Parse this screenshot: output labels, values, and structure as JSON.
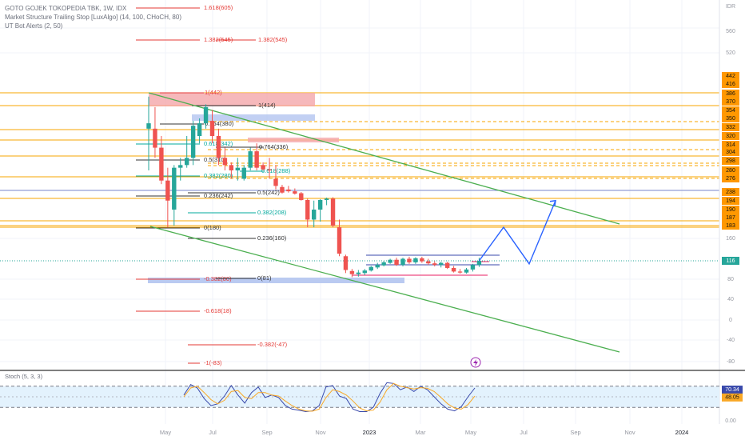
{
  "colors": {
    "up": "#26a69a",
    "down": "#ef5350",
    "fib_red": "#e53935",
    "fib_teal": "#00a99d",
    "fib_gray": "#333333",
    "sr_line": "#f7a600",
    "sr_badge": "#ff9800",
    "channel": "#4caf50",
    "projection": "#2962ff",
    "stoch_k": "#3949ab",
    "stoch_d": "#f9a825",
    "stoch_band": "#e3f2fd",
    "grid": "#f0f3fa",
    "pane_border": "#555555"
  },
  "header": {
    "symbol_line": "GOTO GOJEK TOKOPEDIA TBK, 1W, IDX",
    "indicator_1": "Market Structure Trailing Stop [LuxAlgo] (14, 100, CHoCH, 80)",
    "indicator_2": "UT Bot Alerts (2, 50)",
    "currency": "IDR",
    "stoch_label": "Stoch (5, 3, 3)",
    "event_icon": "lightning-icon"
  },
  "chart_data": [
    {
      "type": "candlestick",
      "title": "GOTO GOJEK TOKOPEDIA TBK, 1W, IDX",
      "x_ticks": [
        "May",
        "Jul",
        "Sep",
        "Nov",
        "2023",
        "Mar",
        "May",
        "Jul",
        "Sep",
        "Nov",
        "2024"
      ],
      "y_ticks": [
        560,
        520,
        160,
        80,
        40,
        0,
        -40,
        -80
      ],
      "y_range": [
        -90,
        615
      ],
      "price_badges": [
        442,
        416,
        386,
        370,
        354,
        350,
        332,
        320,
        314,
        304,
        298,
        280,
        276,
        238,
        194,
        190,
        187,
        183
      ],
      "last_price": 116,
      "candles": [
        {
          "o": 330,
          "h": 380,
          "l": 280,
          "c": 340
        },
        {
          "o": 330,
          "h": 360,
          "l": 300,
          "c": 310
        },
        {
          "o": 310,
          "h": 320,
          "l": 260,
          "c": 270
        },
        {
          "o": 270,
          "h": 285,
          "l": 180,
          "c": 195
        },
        {
          "o": 190,
          "h": 290,
          "l": 183,
          "c": 285
        },
        {
          "o": 285,
          "h": 300,
          "l": 270,
          "c": 290
        },
        {
          "o": 290,
          "h": 320,
          "l": 285,
          "c": 300
        },
        {
          "o": 300,
          "h": 345,
          "l": 290,
          "c": 335
        },
        {
          "o": 320,
          "h": 350,
          "l": 315,
          "c": 340
        },
        {
          "o": 340,
          "h": 365,
          "l": 330,
          "c": 360
        },
        {
          "o": 345,
          "h": 355,
          "l": 315,
          "c": 320
        },
        {
          "o": 320,
          "h": 330,
          "l": 290,
          "c": 300
        },
        {
          "o": 300,
          "h": 310,
          "l": 280,
          "c": 290
        },
        {
          "o": 290,
          "h": 295,
          "l": 275,
          "c": 280
        },
        {
          "o": 280,
          "h": 300,
          "l": 270,
          "c": 285
        },
        {
          "o": 275,
          "h": 290,
          "l": 270,
          "c": 285
        },
        {
          "o": 285,
          "h": 310,
          "l": 280,
          "c": 305
        },
        {
          "o": 305,
          "h": 315,
          "l": 280,
          "c": 285
        },
        {
          "o": 290,
          "h": 295,
          "l": 280,
          "c": 282
        },
        {
          "o": 282,
          "h": 300,
          "l": 275,
          "c": 280
        },
        {
          "o": 275,
          "h": 290,
          "l": 245,
          "c": 255
        },
        {
          "o": 252,
          "h": 258,
          "l": 230,
          "c": 235
        },
        {
          "o": 245,
          "h": 255,
          "l": 235,
          "c": 240
        },
        {
          "o": 240,
          "h": 248,
          "l": 225,
          "c": 230
        },
        {
          "o": 232,
          "h": 238,
          "l": 195,
          "c": 198
        },
        {
          "o": 198,
          "h": 205,
          "l": 180,
          "c": 186
        },
        {
          "o": 186,
          "h": 195,
          "l": 180,
          "c": 190
        },
        {
          "o": 190,
          "h": 202,
          "l": 185,
          "c": 198
        },
        {
          "o": 198,
          "h": 210,
          "l": 192,
          "c": 205
        },
        {
          "o": 205,
          "h": 212,
          "l": 180,
          "c": 183
        },
        {
          "o": 180,
          "h": 186,
          "l": 125,
          "c": 130
        },
        {
          "o": 125,
          "h": 128,
          "l": 92,
          "c": 98
        },
        {
          "o": 96,
          "h": 100,
          "l": 84,
          "c": 90
        },
        {
          "o": 90,
          "h": 98,
          "l": 85,
          "c": 93
        },
        {
          "o": 92,
          "h": 100,
          "l": 88,
          "c": 97
        },
        {
          "o": 97,
          "h": 106,
          "l": 95,
          "c": 104
        },
        {
          "o": 103,
          "h": 112,
          "l": 100,
          "c": 108
        },
        {
          "o": 107,
          "h": 116,
          "l": 105,
          "c": 113
        },
        {
          "o": 112,
          "h": 120,
          "l": 110,
          "c": 118
        },
        {
          "o": 118,
          "h": 122,
          "l": 106,
          "c": 108
        },
        {
          "o": 108,
          "h": 122,
          "l": 105,
          "c": 120
        },
        {
          "o": 120,
          "h": 124,
          "l": 110,
          "c": 113
        },
        {
          "o": 113,
          "h": 123,
          "l": 110,
          "c": 121
        },
        {
          "o": 121,
          "h": 124,
          "l": 112,
          "c": 115
        },
        {
          "o": 115,
          "h": 120,
          "l": 108,
          "c": 111
        },
        {
          "o": 111,
          "h": 115,
          "l": 105,
          "c": 108
        },
        {
          "o": 108,
          "h": 114,
          "l": 103,
          "c": 112
        },
        {
          "o": 112,
          "h": 114,
          "l": 100,
          "c": 102
        },
        {
          "o": 102,
          "h": 106,
          "l": 93,
          "c": 95
        },
        {
          "o": 95,
          "h": 100,
          "l": 91,
          "c": 93
        },
        {
          "o": 93,
          "h": 102,
          "l": 91,
          "c": 99
        },
        {
          "o": 99,
          "h": 110,
          "l": 95,
          "c": 108
        },
        {
          "o": 108,
          "h": 122,
          "l": 104,
          "c": 116
        }
      ],
      "fib_labels": [
        {
          "text": "1.618(605)",
          "color": "red"
        },
        {
          "text": "1.382(545)",
          "color": "red"
        },
        {
          "text": "1.382(545)",
          "color": "red"
        },
        {
          "text": "1(442)",
          "color": "red"
        },
        {
          "text": "1(414)",
          "color": "gray"
        },
        {
          "text": "0.764(380)",
          "color": "gray"
        },
        {
          "text": "0.618(342)",
          "color": "teal"
        },
        {
          "text": "0.764(336)",
          "color": "gray"
        },
        {
          "text": "0.5(310)",
          "color": "gray"
        },
        {
          "text": "0.618(288)",
          "color": "teal"
        },
        {
          "text": "0.382(280)",
          "color": "teal"
        },
        {
          "text": "0.5(242)",
          "color": "gray"
        },
        {
          "text": "0.236(242)",
          "color": "gray"
        },
        {
          "text": "0.382(208)",
          "color": "teal"
        },
        {
          "text": "0(180)",
          "color": "gray"
        },
        {
          "text": "0.236(160)",
          "color": "gray"
        },
        {
          "text": "-0.382(80)",
          "color": "red"
        },
        {
          "text": "0(81)",
          "color": "gray"
        },
        {
          "text": "-0.618(18)",
          "color": "red"
        },
        {
          "text": "-0.382(-47)",
          "color": "red"
        },
        {
          "text": "-1(-83)",
          "color": "red"
        }
      ],
      "projection_path": [
        116,
        180,
        110,
        195
      ],
      "channel": {
        "upper": [
          442,
          185
        ],
        "lower": [
          186,
          -65
        ]
      }
    },
    {
      "type": "line",
      "title": "Stoch (5, 3, 3)",
      "y_ticks": [
        0.0
      ],
      "y_range": [
        0,
        100
      ],
      "badges": [
        70.34,
        48.05
      ],
      "bands": [
        20,
        80
      ],
      "series": [
        {
          "color": "blue",
          "values": [
            55,
            85,
            75,
            45,
            25,
            30,
            52,
            82,
            55,
            32,
            62,
            78,
            48,
            55,
            48,
            25,
            15,
            12,
            8,
            10,
            25,
            78,
            82,
            52,
            45,
            15,
            8,
            8,
            20,
            60,
            90,
            88,
            70,
            78,
            65,
            80,
            70,
            50,
            30,
            15,
            10,
            22,
            50,
            75
          ]
        },
        {
          "color": "yellow",
          "values": [
            50,
            75,
            80,
            62,
            42,
            30,
            40,
            65,
            68,
            48,
            45,
            62,
            62,
            55,
            52,
            38,
            25,
            15,
            10,
            9,
            15,
            48,
            70,
            65,
            55,
            38,
            18,
            10,
            12,
            35,
            70,
            88,
            80,
            76,
            72,
            76,
            74,
            65,
            48,
            30,
            18,
            15,
            28,
            52
          ]
        }
      ]
    }
  ]
}
